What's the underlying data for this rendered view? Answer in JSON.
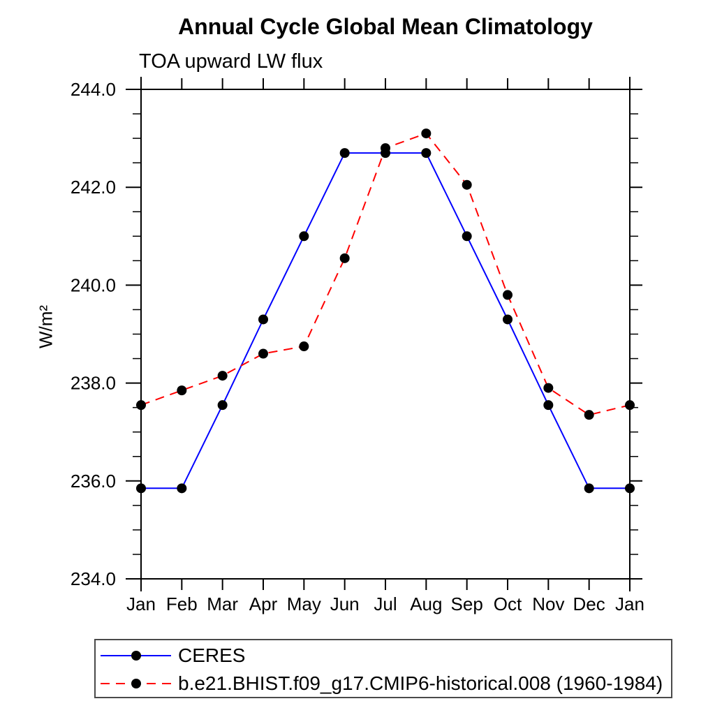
{
  "chart_data": {
    "type": "line",
    "title": "Annual Cycle Global Mean Climatology",
    "subtitle": "TOA upward LW flux",
    "ylabel": "W/m²",
    "xlabel": "",
    "x_categories": [
      "Jan",
      "Feb",
      "Mar",
      "Apr",
      "May",
      "Jun",
      "Jul",
      "Aug",
      "Sep",
      "Oct",
      "Nov",
      "Dec",
      "Jan"
    ],
    "ylim": [
      234.0,
      244.0
    ],
    "ytick_major_interval": 2.0,
    "ytick_minor_interval": 0.5,
    "ytick_labels": [
      "234.0",
      "236.0",
      "238.0",
      "240.0",
      "242.0",
      "244.0"
    ],
    "grid": false,
    "legend_position": "bottom-left",
    "axis_color": "#000000",
    "marker_color": "#000000",
    "series": [
      {
        "name": "CERES",
        "color": "#0000ff",
        "line_style": "solid",
        "marker": "circle",
        "values": [
          235.85,
          235.85,
          237.55,
          239.3,
          241.0,
          242.7,
          242.7,
          242.7,
          241.0,
          239.3,
          237.55,
          235.85,
          235.85
        ]
      },
      {
        "name": "b.e21.BHIST.f09_g17.CMIP6-historical.008 (1960-1984)",
        "color": "#ff0000",
        "line_style": "dashed",
        "marker": "circle",
        "values": [
          237.55,
          237.85,
          238.15,
          238.6,
          238.75,
          240.55,
          242.8,
          243.1,
          242.05,
          239.8,
          237.9,
          237.35,
          237.55
        ]
      }
    ]
  }
}
